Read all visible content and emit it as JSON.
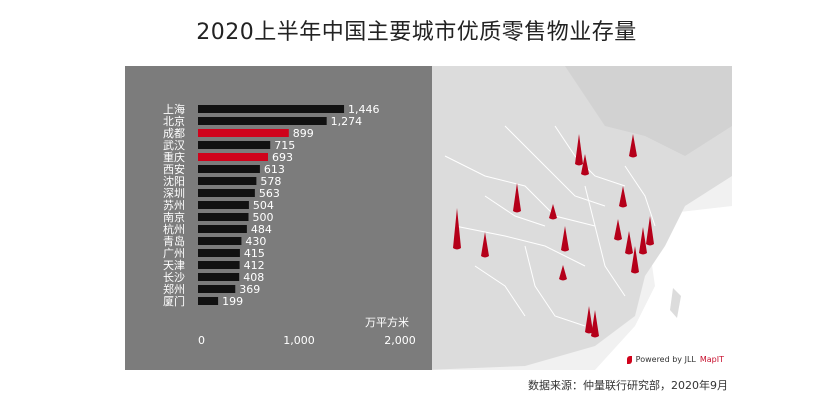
{
  "title": "2020上半年中国主要城市优质零售物业存量",
  "chart_data": {
    "type": "bar",
    "orientation": "horizontal",
    "categories": [
      "上海",
      "北京",
      "成都",
      "武汉",
      "重庆",
      "西安",
      "沈阳",
      "深圳",
      "苏州",
      "南京",
      "杭州",
      "青岛",
      "广州",
      "天津",
      "长沙",
      "郑州",
      "厦门"
    ],
    "values": [
      1446,
      1274,
      899,
      715,
      693,
      613,
      578,
      563,
      504,
      500,
      484,
      430,
      415,
      412,
      408,
      369,
      199
    ],
    "value_labels": [
      "1,446",
      "1,274",
      "899",
      "715",
      "693",
      "613",
      "578",
      "563",
      "504",
      "500",
      "484",
      "430",
      "415",
      "412",
      "408",
      "369",
      "199"
    ],
    "highlighted": [
      "成都",
      "重庆"
    ],
    "xlim": [
      0,
      2000
    ],
    "xticks": [
      0,
      1000,
      2000
    ],
    "xtick_labels": [
      "0",
      "1,000",
      "2,000"
    ],
    "unit": "万平方米",
    "grid": false,
    "colors": {
      "default": "#111111",
      "highlight": "#d0021b",
      "panel": "#7c7c7c"
    }
  },
  "map": {
    "credit_prefix": "Powered by JLL",
    "credit_brand": "MapIT",
    "spike_color": "#b5001a"
  },
  "source": "数据来源：仲量联行研究部，2020年9月"
}
